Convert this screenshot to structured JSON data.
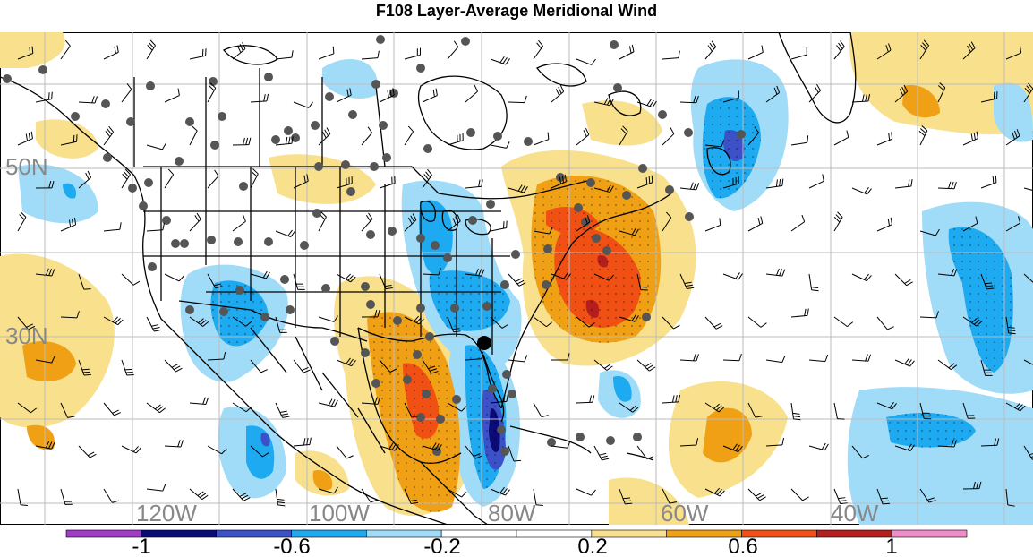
{
  "title": "F108 Layer-Average Meridional Wind",
  "lat_labels": [
    "50N",
    "30N"
  ],
  "lon_labels": [
    "120W",
    "100W",
    "80W",
    "60W",
    "40W"
  ],
  "colorbar": {
    "colors": [
      "#a13cc8",
      "#0a0a78",
      "#3c50c8",
      "#1eaaf0",
      "#a0dcf8",
      "#ffffff",
      "#ffffff",
      "#f8e08c",
      "#f0a014",
      "#f05014",
      "#b41e1e",
      "#f08cc8"
    ],
    "labels": [
      "-1",
      "-0.6",
      "-0.2",
      "0.2",
      "0.6",
      "1"
    ]
  }
}
